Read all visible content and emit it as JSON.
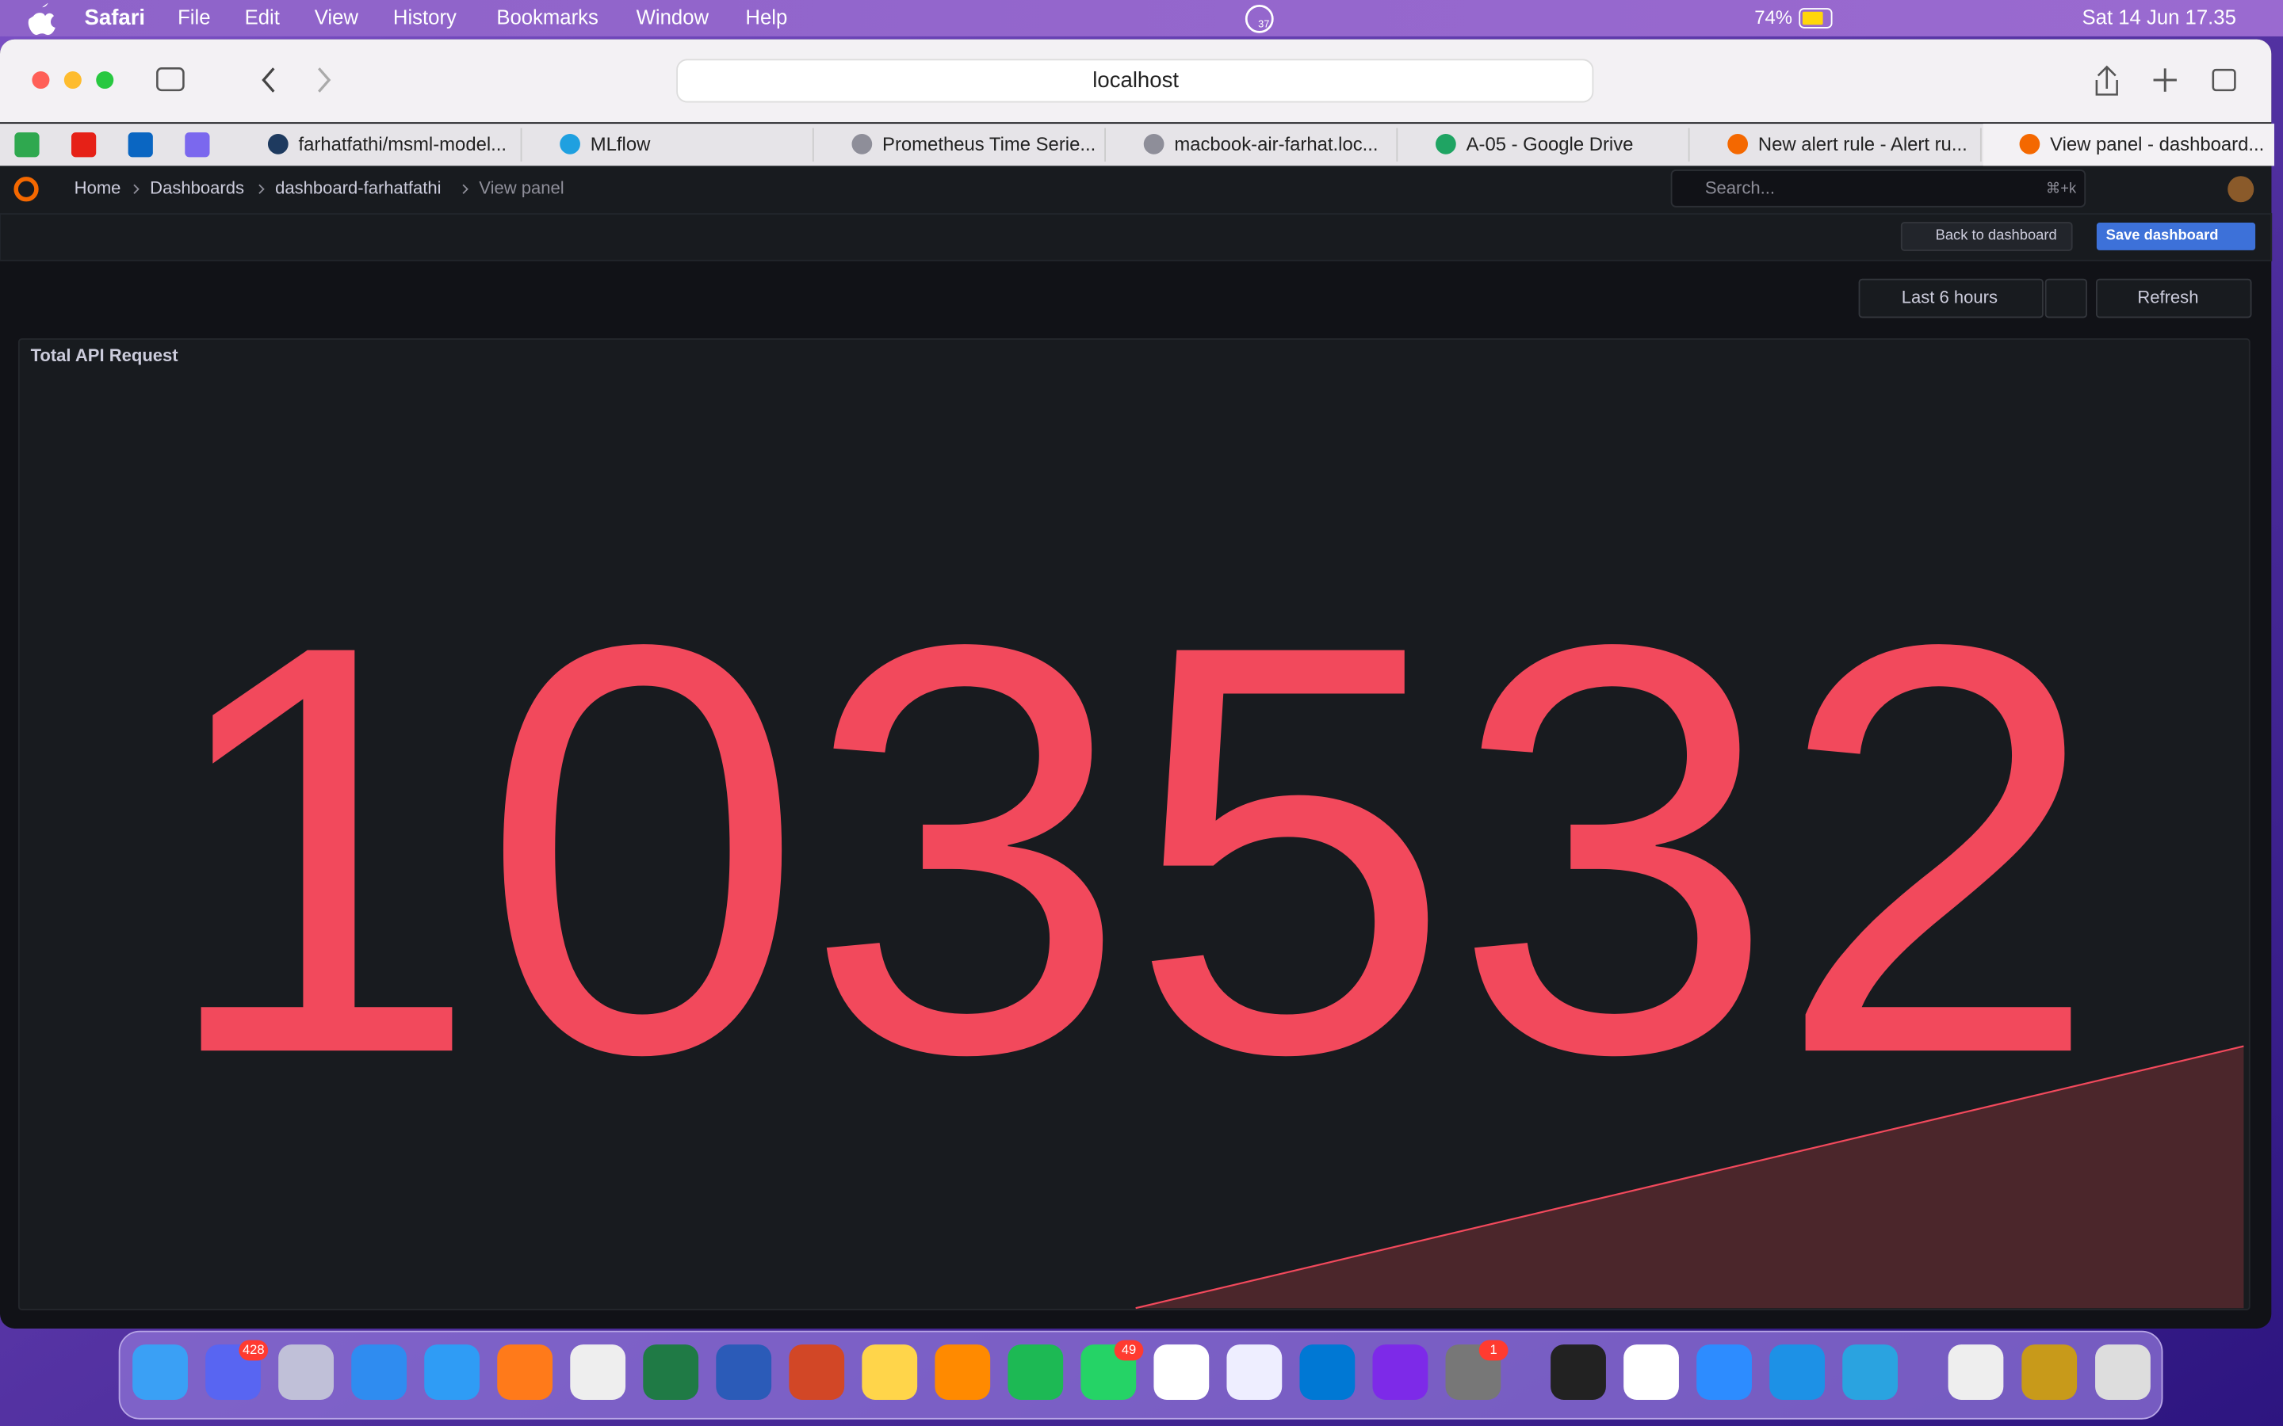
{
  "menu_bar": {
    "app": "Safari",
    "items": [
      "File",
      "Edit",
      "View",
      "History",
      "Bookmarks",
      "Window",
      "Help"
    ],
    "notification_count": "37",
    "battery": "74%",
    "clock": "Sat 14 Jun 17.35"
  },
  "address_bar": {
    "url": "localhost"
  },
  "tabs": [
    "farhatfathi/msml-model...",
    "MLflow",
    "Prometheus Time Serie...",
    "macbook-air-farhat.loc...",
    "A-05 - Google Drive",
    "New alert rule - Alert ru...",
    "View panel - dashboard..."
  ],
  "breadcrumbs": [
    "Home",
    "Dashboards",
    "dashboard-farhatfathi",
    "View panel"
  ],
  "search": {
    "placeholder": "Search...",
    "shortcut": "⌘+k"
  },
  "toolbar": {
    "back": "Back to dashboard",
    "save": "Save dashboard",
    "time_range": "Last 6 hours",
    "refresh": "Refresh"
  },
  "panel": {
    "title": "Total API Request",
    "value": 103532
  },
  "dock_badges": [
    "428",
    "49",
    "1"
  ]
}
